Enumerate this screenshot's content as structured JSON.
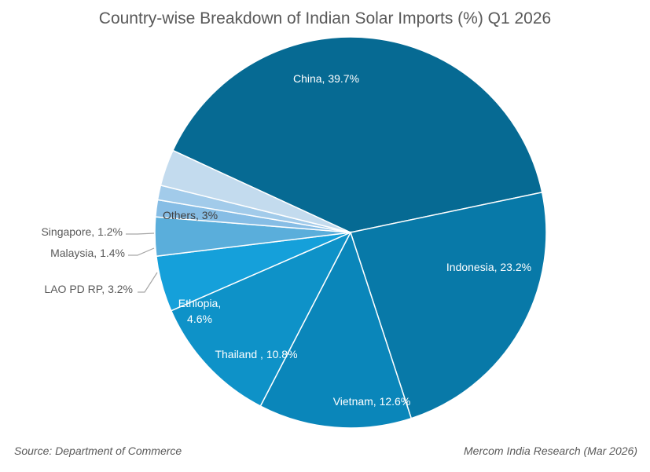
{
  "title": "Country-wise Breakdown of Indian Solar Imports (%) Q1 2026",
  "footer": {
    "source_prefix": "Source:",
    "source_text": "Department of Commerce",
    "credit": "Mercom India Research (Mar 2026)"
  },
  "chart_data": {
    "type": "pie",
    "title": "Country-wise Breakdown of Indian Solar Imports (%) Q1 2026",
    "slices": [
      {
        "label": "China, 39.7%",
        "value": 39.7,
        "color": "#066a93"
      },
      {
        "label": "Indonesia, 23.2%",
        "value": 23.2,
        "color": "#0879a8"
      },
      {
        "label": "Vietnam, 12.6%",
        "value": 12.6,
        "color": "#0a86ba"
      },
      {
        "label": "Thailand , 10.8%",
        "value": 10.8,
        "color": "#0e92c8"
      },
      {
        "label": "Ethiopia, 4.6%",
        "label_lines": [
          "Ethiopia,",
          "4.6%"
        ],
        "value": 4.6,
        "color": "#15a0da"
      },
      {
        "label": "LAO PD RP, 3.2%",
        "value": 3.2,
        "color": "#5aaedb"
      },
      {
        "label": "Malaysia, 1.4%",
        "value": 1.4,
        "color": "#86bde5"
      },
      {
        "label": "Singapore, 1.2%",
        "value": 1.2,
        "color": "#a2cbea"
      },
      {
        "label": "Others, 3%",
        "value": 3,
        "color": "#c3dbee"
      }
    ]
  }
}
